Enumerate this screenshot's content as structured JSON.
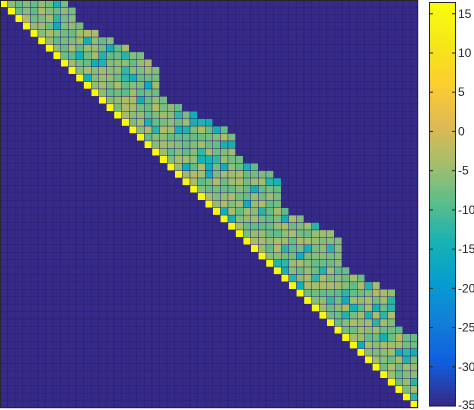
{
  "chart_data": {
    "type": "heatmap",
    "title": "",
    "xlabel": "",
    "ylabel": "",
    "rows": 55,
    "cols": 55,
    "colormap": "parula",
    "colorbar": {
      "limits": [
        -35,
        16.5
      ],
      "ticks": [
        15,
        10,
        5,
        0,
        -5,
        -10,
        -15,
        -20,
        -25,
        -30,
        -35
      ],
      "tick_labels": [
        "15",
        "10",
        "5",
        "0",
        "-5",
        "-10",
        "-15",
        "-20",
        "-25",
        "-30",
        "-35"
      ]
    },
    "grid_lines": true,
    "grid_color": "#2a1a6e",
    "structure": {
      "background_value": -35,
      "diagonal_value": 16,
      "band_value_typical": -6,
      "band_value_min": -16,
      "band_value_max": -2,
      "band_width_cols": [
        8,
        8,
        7,
        7,
        8,
        9,
        10,
        11,
        11,
        11,
        10,
        9,
        8,
        8,
        9,
        10,
        11,
        12,
        12,
        11,
        10,
        10,
        11,
        12,
        12,
        11,
        10,
        9,
        9,
        10,
        11,
        12,
        12,
        11,
        10,
        9,
        9,
        10,
        11,
        12,
        11,
        10,
        9,
        8,
        8,
        9,
        10,
        9,
        8,
        7,
        6,
        5,
        4,
        3,
        2
      ]
    }
  }
}
